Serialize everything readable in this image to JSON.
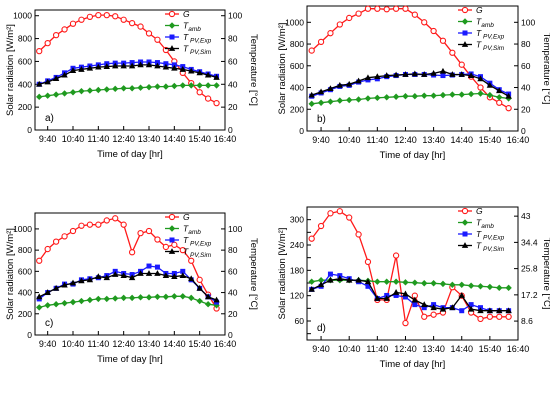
{
  "x_ticks": [
    "9:40",
    "10:40",
    "11:40",
    "12:40",
    "13:40",
    "14:40",
    "15:40",
    "16:40"
  ],
  "legend": {
    "g": "G",
    "amb": {
      "base": "T",
      "sub": "amb"
    },
    "exp": {
      "base": "T",
      "sub": " PV,Exp"
    },
    "sim": {
      "base": "T",
      "sub": " PV,Sim"
    }
  },
  "colors": {
    "g": "#ff1a1a",
    "amb": "#1f9a1f",
    "exp": "#1a1aff",
    "sim": "#000000"
  },
  "chart_data": [
    {
      "type": "line",
      "panel_label": "a)",
      "xlabel": "Time of day [hr]",
      "ylabel": "Solar radiation [W/m²]",
      "y2label": "Temperature [°C]",
      "x_range": [
        "9:10",
        "16:40"
      ],
      "x_step_minutes": 20,
      "ylim": [
        0,
        1050
      ],
      "yticks": [
        0,
        200,
        400,
        600,
        800,
        1000
      ],
      "ylim2": [
        0,
        105
      ],
      "yticks2": [
        0,
        20,
        40,
        60,
        80,
        100
      ],
      "series": [
        {
          "name": "G",
          "axis": "left",
          "marker": "circle",
          "values": [
            690,
            760,
            830,
            880,
            930,
            965,
            990,
            1005,
            1005,
            995,
            965,
            935,
            905,
            845,
            790,
            700,
            600,
            500,
            410,
            330,
            275,
            235
          ]
        },
        {
          "name": "T amb",
          "axis": "right",
          "marker": "diamond",
          "values": [
            29,
            30,
            31,
            32,
            33,
            34,
            34.5,
            35,
            35.5,
            36,
            36.5,
            36.5,
            37,
            37.5,
            38,
            38,
            38.5,
            39,
            39,
            39,
            39,
            39
          ]
        },
        {
          "name": "T PV,Exp",
          "axis": "right",
          "marker": "square",
          "values": [
            40,
            43,
            46,
            50,
            54,
            55,
            56,
            57,
            58,
            58.5,
            58.5,
            59,
            59.5,
            59.5,
            59,
            58,
            57,
            55.5,
            53,
            51,
            49,
            47
          ]
        },
        {
          "name": "T PV,Sim",
          "axis": "right",
          "marker": "triangle",
          "values": [
            40,
            42,
            45,
            48,
            52,
            53,
            54,
            55,
            55.5,
            56,
            56,
            56,
            57,
            57,
            56,
            55,
            54,
            53,
            51.5,
            50,
            48,
            46
          ]
        }
      ]
    },
    {
      "type": "line",
      "panel_label": "b)",
      "xlabel": "Time of day [hr]",
      "ylabel": "Solar radiation [W/m²]",
      "y2label": "Temperature [°C]",
      "x_range": [
        "9:10",
        "16:40"
      ],
      "x_step_minutes": 20,
      "ylim": [
        0,
        1150
      ],
      "yticks": [
        0,
        200,
        400,
        600,
        800,
        1000
      ],
      "ylim2": [
        0,
        115
      ],
      "yticks2": [
        0,
        20,
        40,
        60,
        80,
        100
      ],
      "series": [
        {
          "name": "G",
          "axis": "left",
          "marker": "circle",
          "values": [
            740,
            820,
            900,
            980,
            1040,
            1080,
            1125,
            1125,
            1120,
            1125,
            1125,
            1070,
            1000,
            920,
            830,
            720,
            610,
            500,
            400,
            310,
            260,
            210
          ]
        },
        {
          "name": "T amb",
          "axis": "right",
          "marker": "diamond",
          "values": [
            25,
            26,
            27,
            28,
            28.5,
            29,
            30,
            30.5,
            31,
            31.5,
            32,
            32,
            32.5,
            32.5,
            33,
            33.5,
            33.5,
            34,
            34.5,
            33,
            31,
            30
          ]
        },
        {
          "name": "T PV,Exp",
          "axis": "right",
          "marker": "square",
          "values": [
            32,
            35,
            38,
            41,
            42,
            45,
            47,
            48,
            50,
            51,
            52,
            52,
            52,
            51.5,
            51,
            51.5,
            52,
            52.5,
            50,
            44,
            38,
            34
          ]
        },
        {
          "name": "T PV,Sim",
          "axis": "right",
          "marker": "triangle",
          "values": [
            33,
            36,
            39,
            42,
            43,
            46,
            49,
            50,
            51,
            51.5,
            52,
            52.5,
            52,
            53,
            55,
            52,
            52,
            51,
            48,
            42,
            37,
            32
          ]
        }
      ]
    },
    {
      "type": "line",
      "panel_label": "c)",
      "xlabel": "Time of day [hr]",
      "ylabel": "Solar radiation [W/m²]",
      "y2label": "Temperature [°C]",
      "x_range": [
        "9:10",
        "16:40"
      ],
      "x_step_minutes": 20,
      "ylim": [
        0,
        1150
      ],
      "yticks": [
        0,
        200,
        400,
        600,
        800,
        1000
      ],
      "ylim2": [
        0,
        115
      ],
      "yticks2": [
        0,
        20,
        40,
        60,
        80,
        100
      ],
      "series": [
        {
          "name": "G",
          "axis": "left",
          "marker": "circle",
          "values": [
            700,
            810,
            880,
            930,
            980,
            1030,
            1040,
            1040,
            1080,
            1100,
            1040,
            780,
            960,
            980,
            900,
            830,
            850,
            800,
            700,
            520,
            380,
            250
          ]
        },
        {
          "name": "T amb",
          "axis": "right",
          "marker": "diamond",
          "values": [
            26,
            28,
            29,
            30,
            31,
            32,
            33,
            34,
            34,
            34.5,
            35,
            35,
            35.5,
            35.5,
            36,
            36,
            36.5,
            36.5,
            35,
            32,
            29,
            28
          ]
        },
        {
          "name": "T PV,Exp",
          "axis": "right",
          "marker": "square",
          "values": [
            34,
            40,
            44,
            48,
            48,
            52,
            53,
            54,
            56,
            60,
            58,
            57,
            60,
            65,
            64,
            58,
            58,
            60,
            52,
            44,
            36,
            31
          ]
        },
        {
          "name": "T PV,Sim",
          "axis": "right",
          "marker": "triangle",
          "values": [
            36,
            40,
            44,
            47,
            49,
            51,
            52,
            55,
            54,
            57,
            56,
            54,
            58,
            58,
            58,
            56,
            55,
            56,
            53,
            44,
            36,
            33
          ]
        }
      ]
    },
    {
      "type": "line",
      "panel_label": "d)",
      "xlabel": "Time of day [hr]",
      "ylabel": "Solar radiation [W/m²]",
      "y2label": "Temperature [°C]",
      "x_range": [
        "9:10",
        "16:40"
      ],
      "x_step_minutes": 20,
      "ylim": [
        15,
        330
      ],
      "yticks": [
        30,
        60,
        90,
        120,
        150,
        180,
        210,
        240,
        270,
        300
      ],
      "ytick_labels_every": 2,
      "ylim2": [
        2.4,
        46
      ],
      "yticks2": [
        8.6,
        17.2,
        25.8,
        34.4,
        43.0
      ],
      "series": [
        {
          "name": "G",
          "axis": "left",
          "marker": "circle",
          "values": [
            255,
            285,
            315,
            320,
            305,
            265,
            200,
            110,
            110,
            215,
            55,
            120,
            70,
            75,
            80,
            140,
            120,
            80,
            65,
            70,
            70,
            70
          ]
        },
        {
          "name": "T amb",
          "axis": "right",
          "marker": "diamond",
          "values": [
            21.5,
            22,
            22,
            22,
            22,
            22,
            21.8,
            21.5,
            21.5,
            21.5,
            21.3,
            21.2,
            21,
            21,
            20.8,
            20.5,
            20.5,
            20.2,
            20,
            19.8,
            19.5,
            19.5
          ]
        },
        {
          "name": "T PV,Exp",
          "axis": "right",
          "marker": "square",
          "values": [
            19,
            20,
            24,
            23.5,
            22.5,
            21.5,
            20,
            16,
            17,
            17,
            16.5,
            14,
            13,
            14,
            13,
            13,
            12,
            14,
            13,
            12,
            12,
            12
          ]
        },
        {
          "name": "T PV,Sim",
          "axis": "right",
          "marker": "triangle",
          "values": [
            19,
            20.5,
            22,
            22.5,
            22,
            22,
            21.5,
            16,
            16,
            18,
            17.5,
            15.5,
            14,
            13,
            12.5,
            13,
            17,
            12.5,
            12,
            12,
            12,
            12
          ]
        }
      ]
    }
  ]
}
